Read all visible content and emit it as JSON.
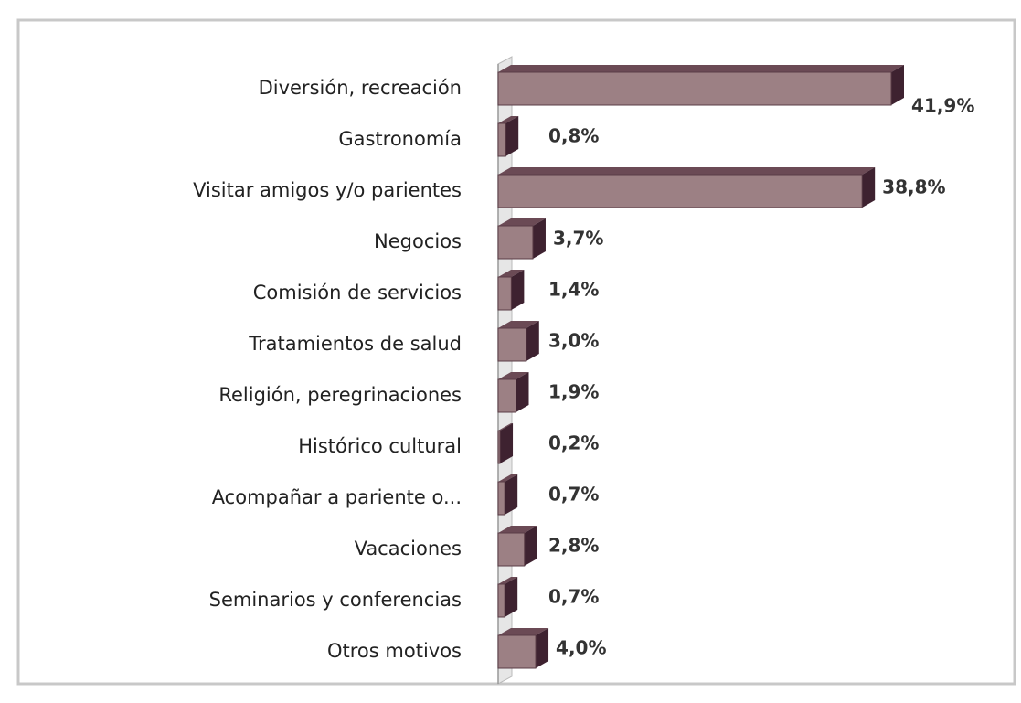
{
  "chart_data": {
    "type": "bar",
    "orientation": "horizontal",
    "categories": [
      "Diversión, recreación",
      "Gastronomía",
      "Visitar amigos y/o parientes",
      "Negocios",
      "Comisión de servicios",
      "Tratamientos de salud",
      "Religión, peregrinaciones",
      "Histórico cultural",
      "Acompañar a pariente o...",
      "Vacaciones",
      "Seminarios y conferencias",
      "Otros motivos"
    ],
    "values": [
      41.9,
      0.8,
      38.8,
      3.7,
      1.4,
      3.0,
      1.9,
      0.2,
      0.7,
      2.8,
      0.7,
      4.0
    ],
    "value_labels": [
      "41,9%",
      "0,8%",
      "38,8%",
      "3,7%",
      "1,4%",
      "3,0%",
      "1,9%",
      "0,2%",
      "0,7%",
      "2,8%",
      "0,7%",
      "4,0%"
    ],
    "color": "#9c8084"
  }
}
